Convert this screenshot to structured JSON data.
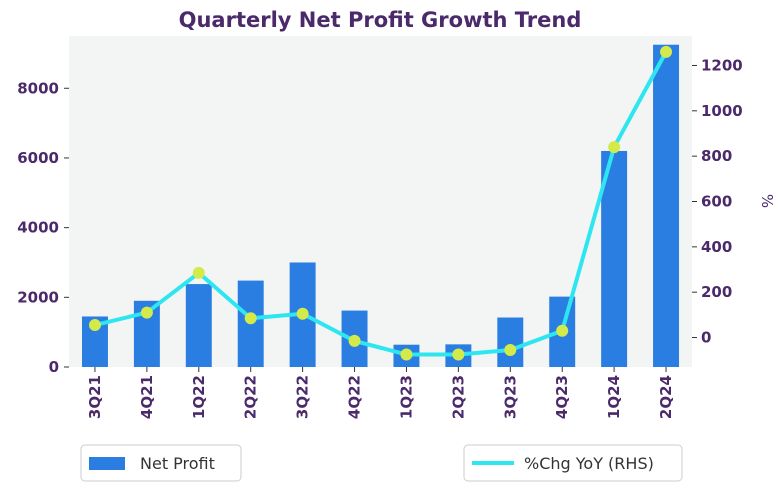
{
  "chart_data": {
    "type": "bar",
    "title": "Quarterly Net Profit Growth Trend",
    "categories": [
      "3Q21",
      "4Q21",
      "1Q22",
      "2Q22",
      "3Q22",
      "4Q22",
      "1Q23",
      "2Q23",
      "3Q23",
      "4Q23",
      "1Q24",
      "2Q24"
    ],
    "series": [
      {
        "name": "Net Profit",
        "type": "bar",
        "axis": "left",
        "color": "#2a7de1",
        "values": [
          1450,
          1900,
          2380,
          2480,
          3000,
          1620,
          640,
          650,
          1420,
          2020,
          6200,
          9250
        ]
      },
      {
        "name": "%Chg YoY (RHS)",
        "type": "line",
        "axis": "right",
        "color": "#2ee6f0",
        "marker_color": "#d4ea4a",
        "values": [
          55,
          110,
          285,
          85,
          105,
          -15,
          -75,
          -75,
          -55,
          30,
          840,
          1260
        ]
      }
    ],
    "y_left": {
      "label": "",
      "ticks": [
        0,
        2000,
        4000,
        6000,
        8000
      ],
      "range": [
        0,
        9500
      ]
    },
    "y_right": {
      "label": "%",
      "ticks": [
        0,
        200,
        400,
        600,
        800,
        1000,
        1200
      ],
      "range": [
        -130,
        1330
      ]
    },
    "grid": false,
    "plot_background": "#f3f5f5",
    "legend": {
      "position": "bottom",
      "items": [
        "Net Profit",
        "%Chg YoY (RHS)"
      ]
    }
  }
}
